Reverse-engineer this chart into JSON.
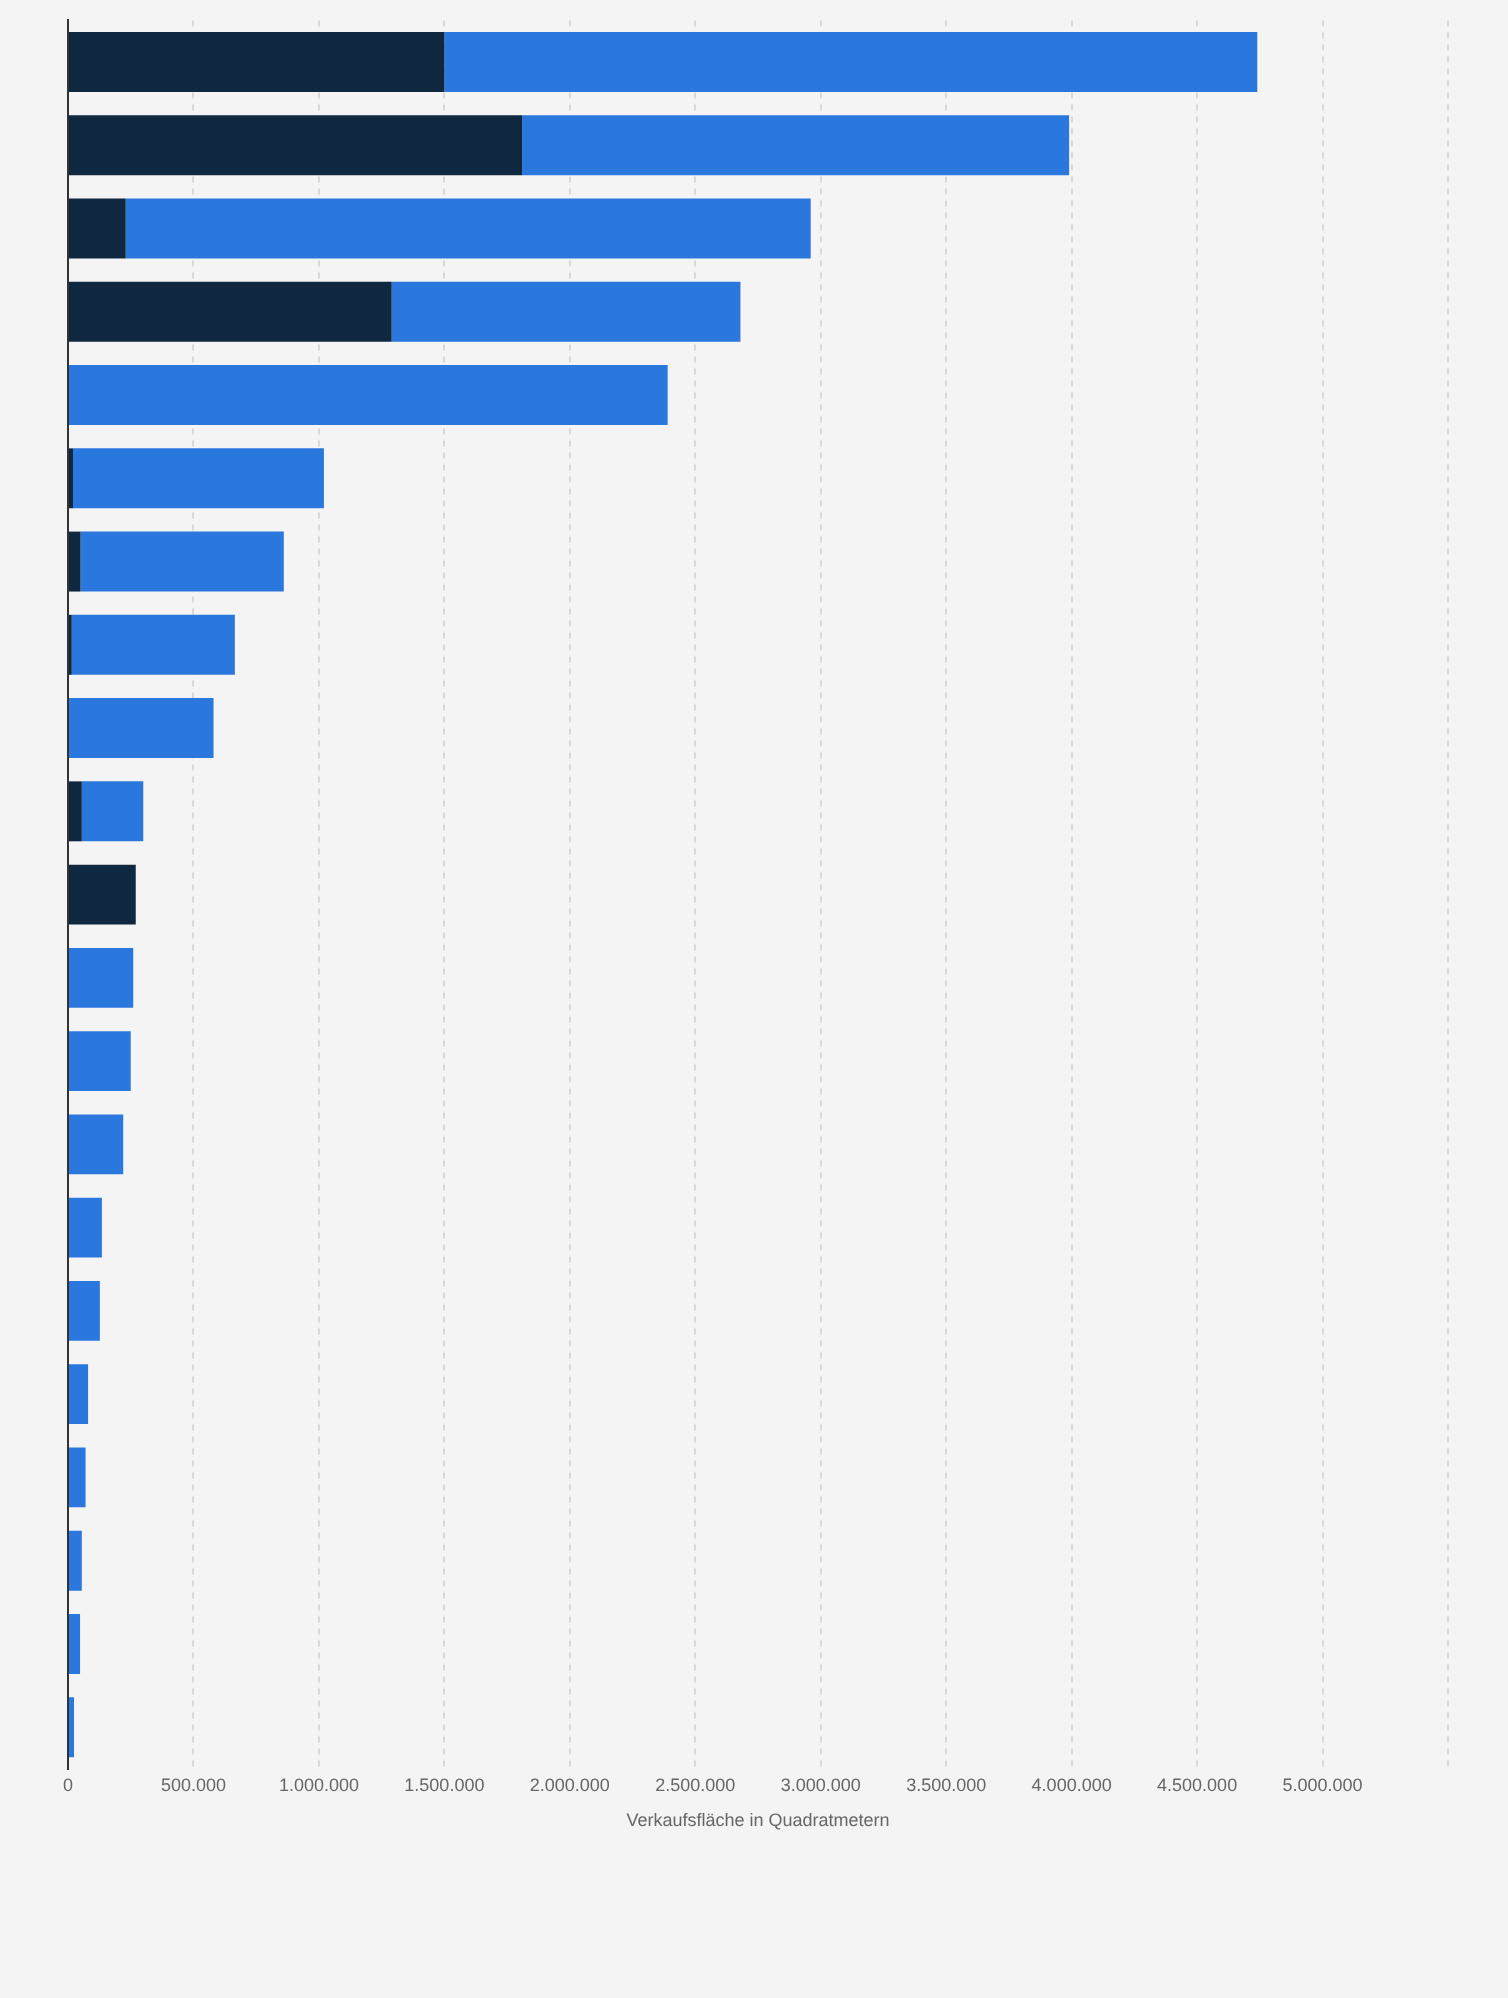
{
  "chart_data": {
    "type": "bar",
    "orientation": "horizontal",
    "stacked": true,
    "xlabel": "Verkaufsfläche in Quadratmetern",
    "categories": [
      null,
      null,
      null,
      null,
      null,
      null,
      null,
      null,
      null,
      null,
      null,
      null,
      null,
      null,
      null,
      null,
      null,
      null,
      null,
      null,
      null
    ],
    "series": [
      {
        "color": "#0f2840",
        "values": [
          1500000,
          1810000,
          230000,
          1290000,
          0,
          20000,
          50000,
          15000,
          0,
          55000,
          270000,
          0,
          0,
          0,
          0,
          0,
          0,
          0,
          0,
          0,
          0
        ]
      },
      {
        "color": "#2a77dd",
        "values": [
          3240000,
          2180000,
          2730000,
          1390000,
          2390000,
          1000000,
          810000,
          650000,
          580000,
          245000,
          0,
          260000,
          250000,
          220000,
          135000,
          127000,
          80000,
          70000,
          55000,
          48000,
          24000
        ]
      }
    ],
    "xlim": [
      0,
      5500000
    ],
    "xticks": [
      0,
      {
        "value": 500000,
        "label": "500.000"
      },
      {
        "value": 1000000,
        "label": "1.000.000"
      },
      {
        "value": 1500000,
        "label": "1.500.000"
      },
      {
        "value": 2000000,
        "label": "2.000.000"
      },
      {
        "value": 2500000,
        "label": "2.500.000"
      },
      {
        "value": 3000000,
        "label": "3.000.000"
      },
      {
        "value": 3500000,
        "label": "3.500.000"
      },
      {
        "value": 4000000,
        "label": "4.000.000"
      },
      {
        "value": 4500000,
        "label": "4.500.000"
      },
      {
        "value": 5000000,
        "label": "5.000.000"
      },
      {
        "value": 5500000,
        "label": null
      }
    ],
    "grid": "x",
    "legend": false
  }
}
